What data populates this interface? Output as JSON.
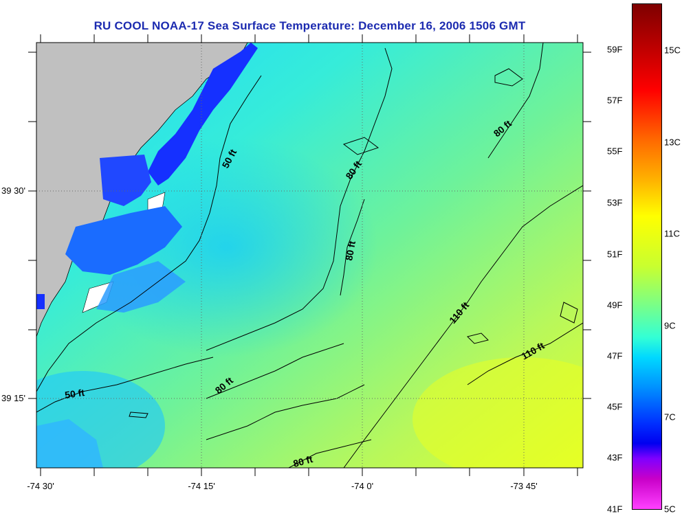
{
  "title": "RU COOL  NOAA-17  Sea Surface Temperature:  December 16, 2006 1506 GMT",
  "lat_labels": [
    "39 30'",
    "39 15'"
  ],
  "lon_labels": [
    "-74 30'",
    "-74 15'",
    "-74 0'",
    "-73 45'"
  ],
  "depth_contours": [
    "50 ft",
    "50 ft",
    "80 ft",
    "80 ft",
    "80 ft",
    "80 ft",
    "80 ft",
    "110 ft",
    "110 ft"
  ],
  "colorbar": {
    "fahrenheit": [
      "59F",
      "57F",
      "55F",
      "53F",
      "51F",
      "49F",
      "47F",
      "45F",
      "43F",
      "41F"
    ],
    "celsius": [
      "15C",
      "13C",
      "11C",
      "9C",
      "7C",
      "5C"
    ]
  },
  "colors": {
    "land": "#c0c0c0",
    "title": "#1c2bb0",
    "coastal_cold": "#1530ff",
    "offshore_warm": "#d8ff30"
  }
}
